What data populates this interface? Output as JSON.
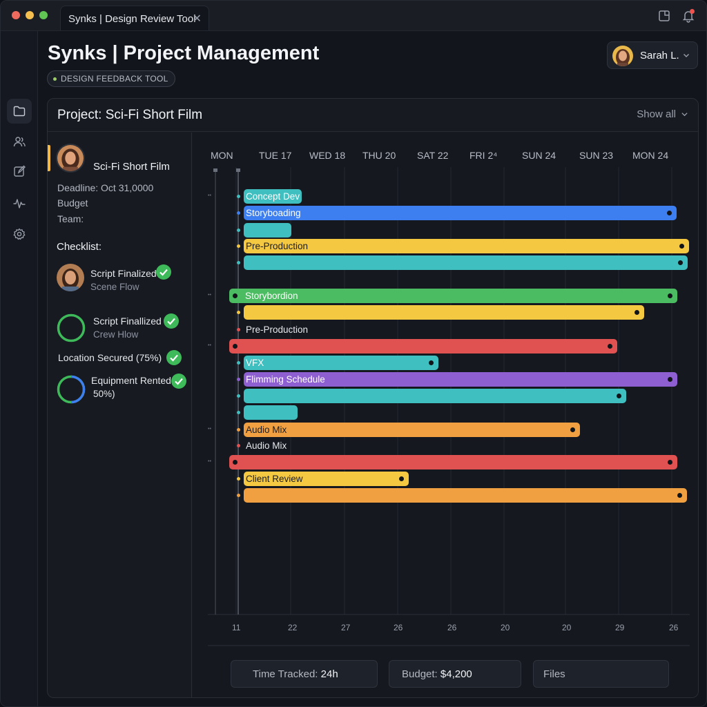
{
  "window": {
    "tab_title": "Synks | Design Review Tool",
    "tab_close": "✕"
  },
  "header": {
    "title": "Synks | Project Management",
    "tag": "DESIGN FEEDBACK TOOL",
    "user_name": "Sarah L."
  },
  "nav": [
    "folder-icon",
    "users-icon",
    "edit-icon",
    "activity-icon",
    "settings-icon"
  ],
  "panel": {
    "title": "Project: Sci-Fi Short Film",
    "show_all": "Show all"
  },
  "project": {
    "name": "Sci-Fi Short Film",
    "deadline": "Deadline: Oct 31,0000",
    "budget": "Budget",
    "team": "Team:",
    "checklist_title": "Checklist:",
    "checklist": [
      {
        "title": "Script Finalized",
        "sub": "Scene Flow"
      },
      {
        "title": "Script Finallized",
        "sub": "Crew Hlow"
      },
      {
        "title": "Location Secured (75%)",
        "sub": ""
      },
      {
        "title": "Equipment Rented",
        "sub": "50%)"
      }
    ]
  },
  "gantt": {
    "top_axis": [
      "MON",
      "TUE 17",
      "WED 18",
      "THU 20",
      "SAT 22",
      "FRI 2⁴",
      "SUN 24",
      "SUN 23",
      "MON 24"
    ],
    "bottom_axis": [
      "11",
      "22",
      "27",
      "26",
      "26",
      "20",
      "20",
      "29",
      "26"
    ],
    "rows": [
      {
        "label": "Concept Dev",
        "color": "#3fbfbf"
      },
      {
        "label": "Storyboading",
        "color": "#3d7ff0"
      },
      {
        "label": "",
        "color": "#3fbfbf"
      },
      {
        "label": "Pre-Production",
        "color": "#f5c842"
      },
      {
        "label": "",
        "color": "#3fbfbf"
      },
      {
        "label": "Storybordion",
        "color": "#4cbc62"
      },
      {
        "label": "",
        "color": "#f5c842"
      },
      {
        "label": "Pre-Production",
        "color": ""
      },
      {
        "label": "",
        "color": "#e05252"
      },
      {
        "label": "VFX",
        "color": "#3fbfbf"
      },
      {
        "label": "Flimming Schedule",
        "color": "#8e5fd0"
      },
      {
        "label": "",
        "color": "#3fbfbf"
      },
      {
        "label": "",
        "color": "#3fbfbf"
      },
      {
        "label": "Audio Mix",
        "color": "#f0a040"
      },
      {
        "label": "Audio Mix",
        "color": ""
      },
      {
        "label": "",
        "color": "#e05252"
      },
      {
        "label": "Client Review",
        "color": "#f5c842"
      },
      {
        "label": "",
        "color": "#f0a040"
      }
    ]
  },
  "stats": {
    "time_tracked_label": "Time Tracked: ",
    "time_tracked_value": "24h",
    "budget_label": "Budget: ",
    "budget_value": "$4,200",
    "files_label": "Files"
  }
}
